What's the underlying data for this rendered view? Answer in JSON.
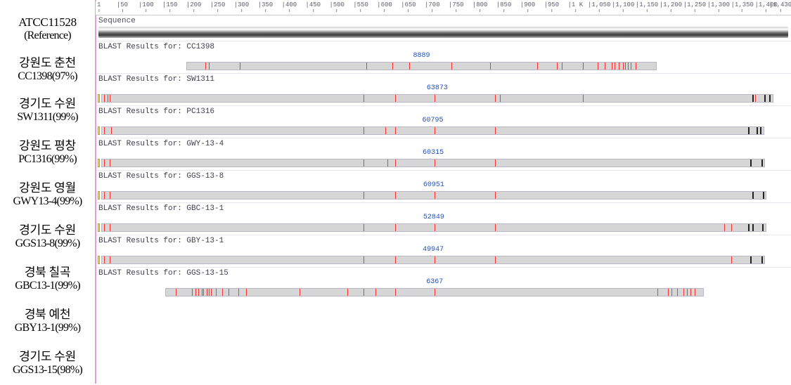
{
  "colors": {
    "mismatch": "#ff3030",
    "mismatch_dark": "#222222",
    "bar_bg": "#d6d6d6",
    "bar_border": "#b8b8c4",
    "track_label": "#2050c0"
  },
  "layout": {
    "track_area_width": 970,
    "ruler_max": 1430,
    "label_ref_height": 46,
    "label_row_height": 48,
    "label_row_height_small": 46
  },
  "ruler": {
    "ticks": [
      1,
      50,
      100,
      150,
      200,
      250,
      300,
      350,
      400,
      450,
      500,
      550,
      600,
      650,
      700,
      750,
      800,
      850,
      900,
      950,
      1000,
      1050,
      1100,
      1150,
      1200,
      1250,
      1300,
      1350,
      1400,
      1430
    ],
    "labels": [
      "1",
      "|50",
      "|100",
      "|150",
      "|200",
      "|250",
      "|300",
      "|350",
      "|400",
      "|450",
      "|500",
      "|550",
      "|600",
      "|650",
      "|700",
      "|750",
      "|800",
      "|850",
      "|900",
      "|950",
      "|1 K",
      "|1,050",
      "|1,100",
      "|1,150",
      "|1,200",
      "|1,250",
      "|1,300",
      "|1,350",
      "|1,400",
      "|1,430"
    ]
  },
  "reference": {
    "label_line1": "ATCC11528",
    "label_line2": "(Reference)",
    "seq_header": "Sequence"
  },
  "tracks": [
    {
      "label_line1": "강원도 춘천",
      "label_line2": "CC1398(97%)",
      "header": "BLAST Results for: CC1398",
      "score": "8889",
      "start_cap": false,
      "aln_start": 185,
      "aln_end": 1170,
      "mismatches": [
        222,
        230,
        295,
        560,
        615,
        650,
        738,
        820,
        918,
        960,
        970,
        1015,
        1045,
        1060,
        1075,
        1080,
        1090,
        1098,
        1102,
        1108,
        1115,
        1125
      ],
      "dark_marks": []
    },
    {
      "label_line1": "경기도 수원",
      "label_line2": "SW1311(99%)",
      "header": "BLAST Results for: SW1311",
      "score": "63873",
      "start_cap": true,
      "aln_start": 6,
      "aln_end": 1415,
      "mismatches": [
        10,
        18,
        22,
        555,
        620,
        703,
        830,
        840,
        1015,
        1375
      ],
      "dark_marks": [
        1370,
        1395,
        1405
      ]
    },
    {
      "label_line1": "강원도 평창",
      "label_line2": "PC1316(99%)",
      "header": "BLAST Results for: PC1316",
      "score": "60795",
      "start_cap": true,
      "aln_start": 6,
      "aln_end": 1396,
      "mismatches": [
        10,
        25,
        555,
        600,
        620,
        703,
        830
      ],
      "dark_marks": [
        1360,
        1378,
        1386
      ]
    },
    {
      "label_line1": "강원도 영월",
      "label_line2": "GWY13-4(99%)",
      "header": "BLAST Results for: GWY-13-4",
      "score": "60315",
      "start_cap": true,
      "aln_start": 6,
      "aln_end": 1398,
      "mismatches": [
        10,
        22,
        555,
        605,
        620,
        703,
        830
      ],
      "dark_marks": [
        1365,
        1388
      ]
    },
    {
      "label_line1": "경기도 수원",
      "label_line2": "GGS13-8(99%)",
      "header": "BLAST Results for: GGS-13-8",
      "score": "60951",
      "start_cap": true,
      "aln_start": 6,
      "aln_end": 1400,
      "mismatches": [
        10,
        22,
        555,
        620,
        703,
        830
      ],
      "dark_marks": [
        1370,
        1392
      ]
    },
    {
      "label_line1": "경북 칠곡",
      "label_line2": "GBC13-1(99%)",
      "header": "BLAST Results for: GBC-13-1",
      "score": "52849",
      "start_cap": true,
      "aln_start": 6,
      "aln_end": 1400,
      "mismatches": [
        10,
        22,
        555,
        620,
        703,
        830,
        1310,
        1325
      ],
      "dark_marks": [
        1360,
        1370,
        1390
      ]
    },
    {
      "label_line1": "경북 예천",
      "label_line2": "GBY13-1(99%)",
      "header": "BLAST Results for: GBY-13-1",
      "score": "49947",
      "start_cap": true,
      "aln_start": 6,
      "aln_end": 1398,
      "mismatches": [
        10,
        22,
        555,
        620,
        703,
        830,
        1325
      ],
      "dark_marks": [
        1365,
        1388
      ]
    },
    {
      "label_line1": "경기도 수원",
      "label_line2": "GGS13-15(98%)",
      "header": "BLAST Results for: GGS-13-15",
      "score": "6367",
      "start_cap": false,
      "aln_start": 140,
      "aln_end": 1270,
      "mismatches": [
        160,
        195,
        202,
        208,
        215,
        218,
        225,
        230,
        235,
        245,
        258,
        272,
        292,
        308,
        420,
        520,
        555,
        580,
        620,
        703,
        1170,
        1192,
        1200,
        1212,
        1225,
        1232,
        1240,
        1248
      ],
      "dark_marks": []
    }
  ]
}
